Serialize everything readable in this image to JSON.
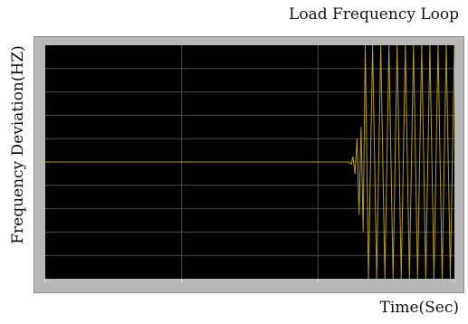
{
  "chart_data": {
    "type": "line",
    "title": "Load Frequency Loop",
    "xlabel": "Time(Sec)",
    "ylabel": "Frequency Deviation(HZ)",
    "grid": true,
    "xlim": [
      0,
      1
    ],
    "ylim": [
      -1,
      1
    ],
    "series": [
      {
        "color": "#b59a2a",
        "points": [
          [
            0.0,
            0.0
          ],
          [
            0.2,
            0.0
          ],
          [
            0.4,
            0.0
          ],
          [
            0.6,
            0.0
          ],
          [
            0.7,
            0.0
          ],
          [
            0.72,
            0.0
          ],
          [
            0.74,
            0.0
          ],
          [
            0.748,
            -0.02
          ],
          [
            0.752,
            0.05
          ],
          [
            0.757,
            -0.1
          ],
          [
            0.762,
            0.2
          ],
          [
            0.767,
            -0.45
          ],
          [
            0.772,
            0.3
          ],
          [
            0.777,
            -0.6
          ],
          [
            0.782,
            1.0
          ],
          [
            0.79,
            -1.0
          ],
          [
            0.8,
            1.0
          ],
          [
            0.81,
            -1.0
          ],
          [
            0.82,
            1.0
          ],
          [
            0.83,
            -1.0
          ],
          [
            0.84,
            1.0
          ],
          [
            0.85,
            -1.0
          ],
          [
            0.86,
            1.0
          ],
          [
            0.87,
            -1.0
          ],
          [
            0.88,
            1.0
          ],
          [
            0.89,
            -1.0
          ],
          [
            0.9,
            1.0
          ],
          [
            0.91,
            -1.0
          ],
          [
            0.92,
            1.0
          ],
          [
            0.93,
            -1.0
          ],
          [
            0.94,
            1.0
          ],
          [
            0.95,
            -1.0
          ],
          [
            0.96,
            1.0
          ],
          [
            0.97,
            -1.0
          ],
          [
            0.98,
            1.0
          ],
          [
            0.99,
            -1.0
          ],
          [
            1.0,
            1.0
          ]
        ]
      }
    ]
  },
  "colors": {
    "plot_background": "#000000",
    "grid": "#4a4a4a",
    "frame": "#b8b8b8",
    "trace": "#b59a2a"
  }
}
